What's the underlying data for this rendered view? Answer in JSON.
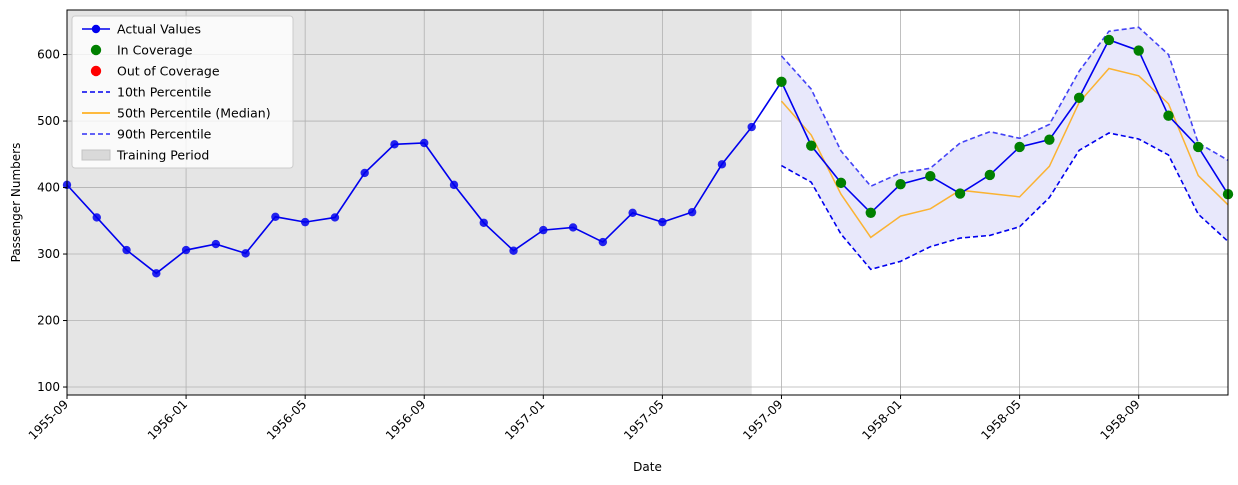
{
  "chart_data": {
    "type": "line",
    "xlabel": "Date",
    "ylabel": "Passenger Numbers",
    "xlim": [
      "1955-09",
      "1958-12"
    ],
    "ylim": [
      88,
      667
    ],
    "grid": true,
    "legend_position": "top-left",
    "x_ticks": [
      "1955-09",
      "1956-01",
      "1956-05",
      "1956-09",
      "1957-01",
      "1957-05",
      "1957-09",
      "1958-01",
      "1958-05",
      "1958-09"
    ],
    "y_ticks": [
      100,
      200,
      300,
      400,
      500,
      600
    ],
    "training_period": {
      "start": "1955-09",
      "end": "1957-08",
      "label": "Training Period",
      "color": "#e5e5e5"
    },
    "legend": [
      {
        "label": "Actual Values",
        "kind": "line-marker",
        "color": "#0000ee"
      },
      {
        "label": "In Coverage",
        "kind": "marker",
        "color": "#008000"
      },
      {
        "label": "Out of Coverage",
        "kind": "marker",
        "color": "#ff0000"
      },
      {
        "label": "10th Percentile",
        "kind": "dashed",
        "color": "#0000ee"
      },
      {
        "label": "50th Percentile (Median)",
        "kind": "solid",
        "color": "#ffa500"
      },
      {
        "label": "90th Percentile",
        "kind": "dashed",
        "color": "#2f2ff5"
      },
      {
        "label": "Training Period",
        "kind": "patch",
        "color": "#d9d9d9"
      }
    ],
    "series": [
      {
        "name": "Actual Values",
        "color": "#0000ee",
        "x": [
          "1955-09",
          "1955-10",
          "1955-11",
          "1955-12",
          "1956-01",
          "1956-02",
          "1956-03",
          "1956-04",
          "1956-05",
          "1956-06",
          "1956-07",
          "1956-08",
          "1956-09",
          "1956-10",
          "1956-11",
          "1956-12",
          "1957-01",
          "1957-02",
          "1957-03",
          "1957-04",
          "1957-05",
          "1957-06",
          "1957-07",
          "1957-08",
          "1957-09",
          "1957-10",
          "1957-11",
          "1957-12",
          "1958-01",
          "1958-02",
          "1958-03",
          "1958-04",
          "1958-05",
          "1958-06",
          "1958-07",
          "1958-08",
          "1958-09",
          "1958-10",
          "1958-11",
          "1958-12"
        ],
        "values": [
          404,
          355,
          306,
          271,
          306,
          315,
          301,
          356,
          348,
          355,
          422,
          465,
          467,
          404,
          347,
          305,
          336,
          340,
          318,
          362,
          348,
          363,
          435,
          491,
          559,
          463,
          407,
          362,
          405,
          417,
          391,
          419,
          461,
          472,
          535,
          622,
          606,
          508,
          461,
          390
        ]
      },
      {
        "name": "In Coverage",
        "color": "#008000",
        "x": [
          "1957-09",
          "1957-10",
          "1957-11",
          "1957-12",
          "1958-01",
          "1958-02",
          "1958-03",
          "1958-04",
          "1958-05",
          "1958-06",
          "1958-07",
          "1958-08",
          "1958-09",
          "1958-10",
          "1958-11",
          "1958-12"
        ],
        "values": [
          559,
          463,
          407,
          362,
          405,
          417,
          391,
          419,
          461,
          472,
          535,
          622,
          606,
          508,
          461,
          390
        ]
      },
      {
        "name": "10th Percentile",
        "color": "#0000ee",
        "x": [
          "1957-09",
          "1957-10",
          "1957-11",
          "1957-12",
          "1958-01",
          "1958-02",
          "1958-03",
          "1958-04",
          "1958-05",
          "1958-06",
          "1958-07",
          "1958-08",
          "1958-09",
          "1958-10",
          "1958-11",
          "1958-12"
        ],
        "values": [
          433,
          408,
          330,
          277,
          289,
          311,
          324,
          328,
          341,
          385,
          456,
          482,
          473,
          449,
          360,
          319
        ]
      },
      {
        "name": "50th Percentile (Median)",
        "color": "#ffa500",
        "x": [
          "1957-09",
          "1957-10",
          "1957-11",
          "1957-12",
          "1958-01",
          "1958-02",
          "1958-03",
          "1958-04",
          "1958-05",
          "1958-06",
          "1958-07",
          "1958-08",
          "1958-09",
          "1958-10",
          "1958-11",
          "1958-12"
        ],
        "values": [
          530,
          479,
          390,
          325,
          357,
          368,
          396,
          391,
          386,
          432,
          528,
          579,
          568,
          526,
          418,
          374
        ]
      },
      {
        "name": "90th Percentile",
        "color": "#2f2ff5",
        "x": [
          "1957-09",
          "1957-10",
          "1957-11",
          "1957-12",
          "1958-01",
          "1958-02",
          "1958-03",
          "1958-04",
          "1958-05",
          "1958-06",
          "1958-07",
          "1958-08",
          "1958-09",
          "1958-10",
          "1958-11",
          "1958-12"
        ],
        "values": [
          598,
          548,
          455,
          402,
          422,
          429,
          467,
          484,
          474,
          495,
          575,
          635,
          641,
          600,
          467,
          441
        ]
      }
    ],
    "band_color": "#e8e8fb"
  }
}
